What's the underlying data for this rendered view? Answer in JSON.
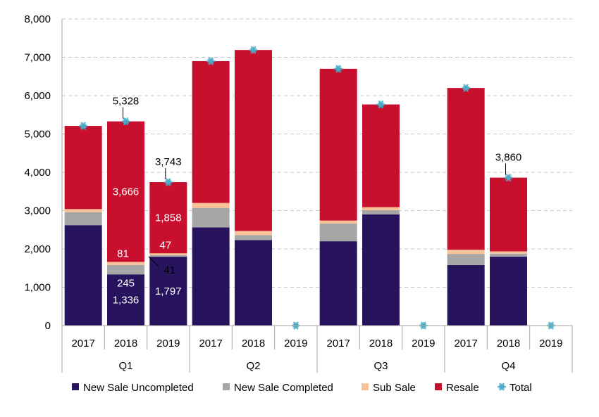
{
  "chart_data": {
    "type": "bar",
    "stacked": true,
    "title": "",
    "xlabel": "",
    "ylabel": "",
    "ylim": [
      0,
      8000
    ],
    "yticks": [
      0,
      1000,
      2000,
      3000,
      4000,
      5000,
      6000,
      7000,
      8000
    ],
    "ytick_labels": [
      "0",
      "1,000",
      "2,000",
      "3,000",
      "4,000",
      "5,000",
      "6,000",
      "7,000",
      "8,000"
    ],
    "grid": "horizontal dashed",
    "legend_position": "bottom",
    "groups": [
      "Q1",
      "Q2",
      "Q3",
      "Q4"
    ],
    "categories": [
      {
        "group": "Q1",
        "year": "2017"
      },
      {
        "group": "Q1",
        "year": "2018"
      },
      {
        "group": "Q1",
        "year": "2019"
      },
      {
        "group": "Q2",
        "year": "2017"
      },
      {
        "group": "Q2",
        "year": "2018"
      },
      {
        "group": "Q2",
        "year": "2019"
      },
      {
        "group": "Q3",
        "year": "2017"
      },
      {
        "group": "Q3",
        "year": "2018"
      },
      {
        "group": "Q3",
        "year": "2019"
      },
      {
        "group": "Q4",
        "year": "2017"
      },
      {
        "group": "Q4",
        "year": "2018"
      },
      {
        "group": "Q4",
        "year": "2019"
      }
    ],
    "series": [
      {
        "name": "New Sale Uncompleted",
        "color": "#27135e",
        "values": [
          2620,
          1336,
          1797,
          2560,
          2230,
          0,
          2200,
          2900,
          0,
          1580,
          1797,
          0
        ]
      },
      {
        "name": "New Sale Completed",
        "color": "#a6a6a6",
        "values": [
          340,
          245,
          41,
          510,
          130,
          0,
          460,
          110,
          0,
          290,
          80,
          0
        ]
      },
      {
        "name": "Sub Sale",
        "color": "#f8c197",
        "values": [
          80,
          81,
          47,
          130,
          110,
          0,
          80,
          80,
          0,
          110,
          60,
          0
        ]
      },
      {
        "name": "Resale",
        "color": "#c8102e",
        "values": [
          2170,
          3666,
          1858,
          3700,
          4720,
          0,
          3960,
          2680,
          0,
          4220,
          1923,
          0
        ]
      }
    ],
    "total": {
      "name": "Total",
      "color": "#4bacc6",
      "values": [
        5210,
        5328,
        3743,
        6900,
        7190,
        0,
        6700,
        5770,
        0,
        6200,
        3860,
        0
      ]
    },
    "data_labels": [
      {
        "category_index": 1,
        "series": "New Sale Uncompleted",
        "text": "1,336",
        "color": "#ffffff"
      },
      {
        "category_index": 1,
        "series": "New Sale Completed",
        "text": "245",
        "color": "#ffffff"
      },
      {
        "category_index": 1,
        "series": "Sub Sale",
        "text": "81",
        "color": "#ffffff"
      },
      {
        "category_index": 1,
        "series": "Resale",
        "text": "3,666",
        "color": "#ffffff"
      },
      {
        "category_index": 1,
        "series": "Total",
        "text": "5,328",
        "color": "#000000"
      },
      {
        "category_index": 2,
        "series": "New Sale Uncompleted",
        "text": "1,797",
        "color": "#ffffff"
      },
      {
        "category_index": 2,
        "series": "New Sale Completed",
        "text": "41",
        "color": "#000000"
      },
      {
        "category_index": 2,
        "series": "Sub Sale",
        "text": "47",
        "color": "#ffffff"
      },
      {
        "category_index": 2,
        "series": "Resale",
        "text": "1,858",
        "color": "#ffffff"
      },
      {
        "category_index": 2,
        "series": "Total",
        "text": "3,743",
        "color": "#000000"
      },
      {
        "category_index": 10,
        "series": "Total",
        "text": "3,860",
        "color": "#000000"
      }
    ]
  }
}
